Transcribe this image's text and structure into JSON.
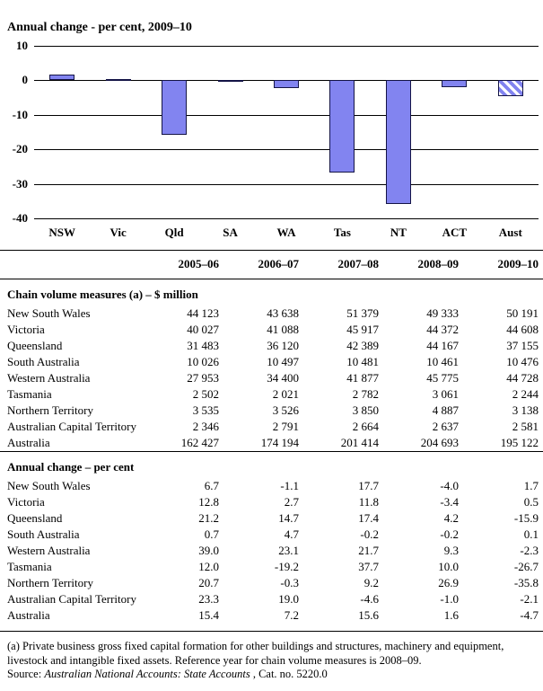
{
  "chart_data": {
    "type": "bar",
    "title": "Annual change - per cent, 2009–10",
    "categories": [
      "NSW",
      "Vic",
      "Qld",
      "SA",
      "WA",
      "Tas",
      "NT",
      "ACT",
      "Aust"
    ],
    "values": [
      1.7,
      0.5,
      -15.9,
      0.1,
      -2.3,
      -26.7,
      -35.8,
      -2.1,
      -4.7
    ],
    "xlabel": "",
    "ylabel": "",
    "ylim": [
      -40,
      10
    ],
    "yticks": [
      10,
      0,
      -10,
      -20,
      -30,
      -40
    ],
    "grid": true,
    "legend": "none",
    "bar_color": "#8284f0",
    "bar_border_color": "#141446",
    "hatched_categories": [
      "Aust"
    ]
  },
  "table": {
    "col_headers": [
      "2005–06",
      "2006–07",
      "2007–08",
      "2008–09",
      "2009–10"
    ],
    "sections": [
      {
        "header": "Chain volume measures (a) – $ million",
        "rows": [
          {
            "label": "New South Wales",
            "values": [
              "44 123",
              "43 638",
              "51 379",
              "49 333",
              "50 191"
            ]
          },
          {
            "label": "Victoria",
            "values": [
              "40 027",
              "41 088",
              "45 917",
              "44 372",
              "44 608"
            ]
          },
          {
            "label": "Queensland",
            "values": [
              "31 483",
              "36 120",
              "42 389",
              "44 167",
              "37 155"
            ]
          },
          {
            "label": "South Australia",
            "values": [
              "10 026",
              "10 497",
              "10 481",
              "10 461",
              "10 476"
            ]
          },
          {
            "label": "Western Australia",
            "values": [
              "27 953",
              "34 400",
              "41 877",
              "45 775",
              "44 728"
            ]
          },
          {
            "label": "Tasmania",
            "values": [
              "2 502",
              "2 021",
              "2 782",
              "3 061",
              "2 244"
            ]
          },
          {
            "label": "Northern Territory",
            "values": [
              "3 535",
              "3 526",
              "3 850",
              "4 887",
              "3 138"
            ]
          },
          {
            "label": "Australian Capital Territory",
            "values": [
              "2 346",
              "2 791",
              "2 664",
              "2 637",
              "2 581"
            ]
          },
          {
            "label": "Australia",
            "values": [
              "162 427",
              "174 194",
              "201 414",
              "204 693",
              "195 122"
            ]
          }
        ]
      },
      {
        "header": "Annual change – per cent",
        "rows": [
          {
            "label": "New South Wales",
            "values": [
              "6.7",
              "-1.1",
              "17.7",
              "-4.0",
              "1.7"
            ]
          },
          {
            "label": "Victoria",
            "values": [
              "12.8",
              "2.7",
              "11.8",
              "-3.4",
              "0.5"
            ]
          },
          {
            "label": "Queensland",
            "values": [
              "21.2",
              "14.7",
              "17.4",
              "4.2",
              "-15.9"
            ]
          },
          {
            "label": "South Australia",
            "values": [
              "0.7",
              "4.7",
              "-0.2",
              "-0.2",
              "0.1"
            ]
          },
          {
            "label": "Western Australia",
            "values": [
              "39.0",
              "23.1",
              "21.7",
              "9.3",
              "-2.3"
            ]
          },
          {
            "label": "Tasmania",
            "values": [
              "12.0",
              "-19.2",
              "37.7",
              "10.0",
              "-26.7"
            ]
          },
          {
            "label": "Northern Territory",
            "values": [
              "20.7",
              "-0.3",
              "9.2",
              "26.9",
              "-35.8"
            ]
          },
          {
            "label": "Australian Capital Territory",
            "values": [
              "23.3",
              "19.0",
              "-4.6",
              "-1.0",
              "-2.1"
            ]
          },
          {
            "label": "Australia",
            "values": [
              "15.4",
              "7.2",
              "15.6",
              "1.6",
              "-4.7"
            ]
          }
        ]
      }
    ]
  },
  "footnotes": {
    "note_a": "(a) Private business gross fixed capital formation for other buildings and structures, machinery and equipment, livestock and intangible fixed assets. Reference year for chain volume measures is 2008–09.",
    "source_prefix": "Source: ",
    "source_title": "Australian National Accounts: State Accounts",
    "source_suffix": " , Cat. no. 5220.0"
  }
}
